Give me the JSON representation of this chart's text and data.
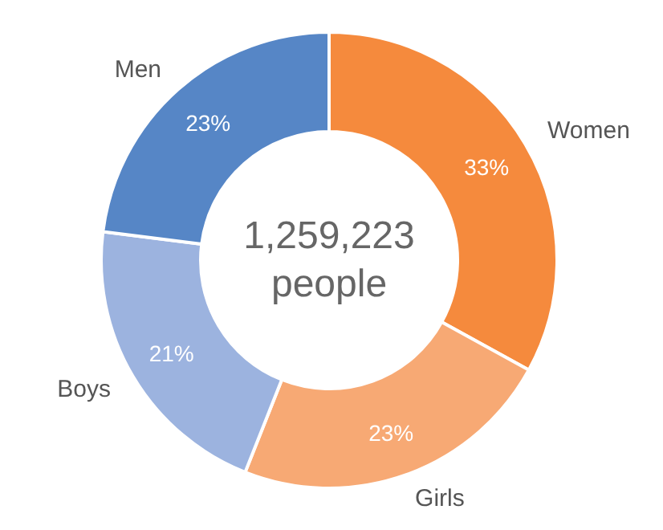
{
  "chart_data": {
    "type": "donut",
    "categories": [
      "Women",
      "Girls",
      "Boys",
      "Men"
    ],
    "values": [
      33,
      23,
      21,
      23
    ],
    "colors": [
      "#f58a3d",
      "#f7a974",
      "#9cb3df",
      "#5686c6"
    ],
    "value_labels": [
      "33%",
      "23%",
      "21%",
      "23%"
    ],
    "annotations": [
      "1,259,223 people"
    ],
    "legend": false
  }
}
